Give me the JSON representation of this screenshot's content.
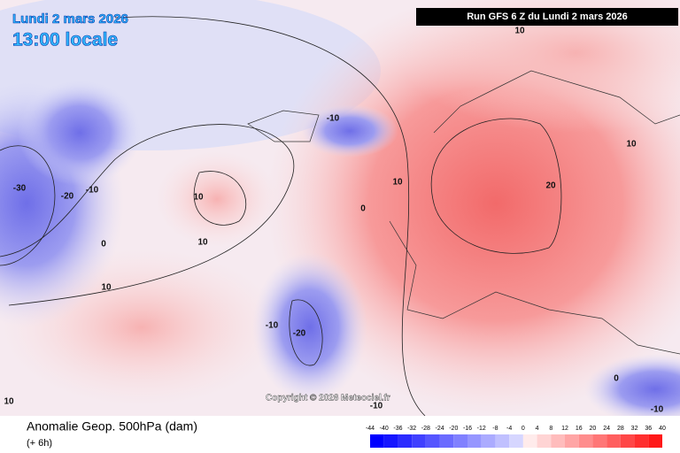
{
  "header": {
    "date": "Lundi 2 mars 2026",
    "time": "13:00 locale",
    "run": "Run GFS 6 Z du Lundi 2 mars 2026"
  },
  "copyright": "Copyright © 2026 Meteociel.fr",
  "contour_labels": [
    -30,
    -20,
    -10,
    0,
    10,
    10,
    10,
    -10,
    -10,
    -20,
    10,
    0,
    10,
    20,
    10,
    -10,
    10,
    0,
    -10
  ],
  "footer": {
    "title": "Anomalie Geop. 500hPa (dam)",
    "lead": "(+ 6h)",
    "scale_ticks": [
      -44,
      -40,
      -36,
      -32,
      -28,
      -24,
      -20,
      -16,
      -12,
      -8,
      -4,
      0,
      4,
      8,
      12,
      16,
      20,
      24,
      28,
      32,
      36,
      40
    ]
  }
}
